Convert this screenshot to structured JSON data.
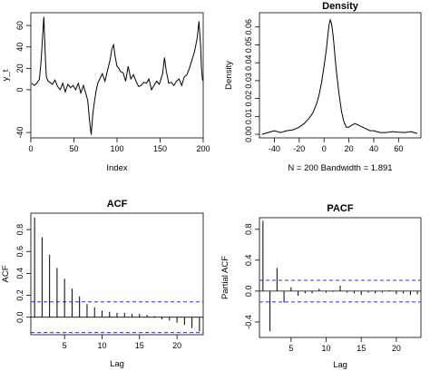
{
  "chart_data": [
    {
      "type": "line",
      "title": "",
      "xlabel": "Index",
      "ylabel": "y_t",
      "xlim": [
        0,
        200
      ],
      "ylim": [
        -45,
        72
      ],
      "x_ticks": [
        "0",
        "50",
        "100",
        "150",
        "200"
      ],
      "y_ticks": [
        "-40",
        "0",
        "20",
        "40",
        "60"
      ],
      "x": [
        1,
        4,
        7,
        10,
        12,
        14,
        15,
        16,
        17,
        18,
        20,
        22,
        25,
        28,
        31,
        34,
        37,
        40,
        43,
        46,
        49,
        52,
        55,
        58,
        61,
        64,
        66,
        68,
        70,
        72,
        74,
        76,
        78,
        80,
        83,
        86,
        89,
        92,
        94,
        96,
        98,
        100,
        102,
        104,
        107,
        110,
        113,
        116,
        119,
        122,
        125,
        128,
        131,
        134,
        137,
        140,
        143,
        146,
        149,
        151,
        153,
        155,
        157,
        160,
        163,
        166,
        169,
        172,
        175,
        178,
        181,
        184,
        187,
        190,
        193,
        195,
        197,
        198,
        199,
        200
      ],
      "y": [
        6,
        4,
        6,
        10,
        28,
        55,
        68,
        48,
        26,
        12,
        8,
        7,
        5,
        9,
        3,
        0,
        6,
        -2,
        5,
        2,
        4,
        0,
        6,
        -3,
        4,
        -4,
        -10,
        -28,
        -42,
        -22,
        -10,
        0,
        7,
        10,
        15,
        8,
        18,
        28,
        38,
        42,
        30,
        22,
        20,
        17,
        16,
        8,
        22,
        10,
        14,
        8,
        3,
        4,
        7,
        6,
        10,
        0,
        4,
        8,
        5,
        10,
        15,
        30,
        18,
        6,
        7,
        4,
        8,
        10,
        4,
        12,
        14,
        20,
        28,
        36,
        48,
        64,
        40,
        20,
        10,
        8
      ]
    },
    {
      "type": "line",
      "title": "Density",
      "xlabel": "N = 200   Bandwidth = 1.891",
      "ylabel": "Density",
      "xlim": [
        -52,
        78
      ],
      "ylim": [
        -0.002,
        0.068
      ],
      "x_ticks": [
        "-40",
        "-20",
        "0",
        "20",
        "40",
        "60"
      ],
      "y_ticks": [
        "0.00",
        "0.01",
        "0.02",
        "0.03",
        "0.04",
        "0.05",
        "0.06"
      ],
      "x": [
        -50,
        -45,
        -40,
        -35,
        -30,
        -25,
        -20,
        -16,
        -12,
        -9,
        -6,
        -4,
        -2,
        0,
        2,
        3,
        4,
        5,
        6,
        7,
        8,
        9,
        10,
        12,
        14,
        16,
        18,
        20,
        22,
        25,
        28,
        31,
        34,
        37,
        40,
        45,
        50,
        55,
        60,
        65,
        70,
        75
      ],
      "y": [
        0.0,
        0.001,
        0.002,
        0.001,
        0.002,
        0.0025,
        0.004,
        0.006,
        0.009,
        0.012,
        0.017,
        0.022,
        0.029,
        0.038,
        0.048,
        0.055,
        0.061,
        0.064,
        0.062,
        0.057,
        0.05,
        0.042,
        0.035,
        0.023,
        0.013,
        0.007,
        0.004,
        0.004,
        0.005,
        0.006,
        0.005,
        0.004,
        0.003,
        0.002,
        0.002,
        0.001,
        0.001,
        0.0015,
        0.0012,
        0.001,
        0.0015,
        0.0005
      ]
    },
    {
      "type": "bar",
      "title": "ACF",
      "xlabel": "Lag",
      "ylabel": "ACF",
      "xlim": [
        0.5,
        23.5
      ],
      "ylim": [
        -0.16,
        0.95
      ],
      "x_ticks": [
        "5",
        "10",
        "15",
        "20"
      ],
      "y_ticks": [
        "0.0",
        "0.2",
        "0.4",
        "0.6",
        "0.8"
      ],
      "lags": [
        1,
        2,
        3,
        4,
        5,
        6,
        7,
        8,
        9,
        10,
        11,
        12,
        13,
        14,
        15,
        16,
        17,
        18,
        19,
        20,
        21,
        22,
        23
      ],
      "values": [
        0.91,
        0.73,
        0.57,
        0.45,
        0.35,
        0.26,
        0.19,
        0.12,
        0.09,
        0.06,
        0.05,
        0.04,
        0.04,
        0.03,
        0.03,
        0.02,
        0.01,
        -0.02,
        -0.03,
        -0.05,
        -0.07,
        -0.1,
        -0.13
      ],
      "conf_limit": 0.14
    },
    {
      "type": "bar",
      "title": "PACF",
      "xlabel": "Lag",
      "ylabel": "Partial ACF",
      "xlim": [
        0.5,
        23.5
      ],
      "ylim": [
        -0.6,
        0.95
      ],
      "x_ticks": [
        "5",
        "10",
        "15",
        "20"
      ],
      "y_ticks": [
        "-0.4",
        "0.0",
        "0.4",
        "0.8"
      ],
      "lags": [
        1,
        2,
        3,
        4,
        5,
        6,
        7,
        8,
        9,
        10,
        11,
        12,
        13,
        14,
        15,
        16,
        17,
        18,
        19,
        20,
        21,
        22,
        23
      ],
      "values": [
        0.91,
        -0.52,
        0.3,
        -0.15,
        0.05,
        -0.06,
        -0.03,
        -0.03,
        0.03,
        -0.02,
        -0.01,
        0.07,
        -0.02,
        -0.03,
        -0.05,
        -0.02,
        -0.03,
        -0.02,
        0.01,
        -0.04,
        -0.03,
        -0.05,
        -0.04
      ],
      "conf_limit": 0.14
    }
  ],
  "colors": {
    "conf_line": "#3333cc",
    "ink": "#000000"
  }
}
